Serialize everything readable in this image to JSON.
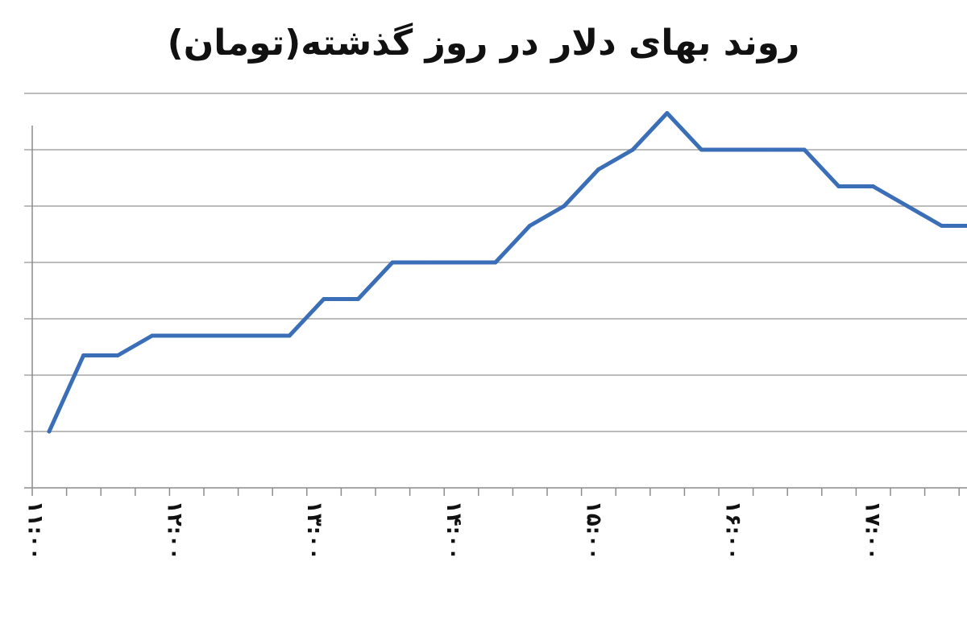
{
  "chart_data": {
    "type": "line",
    "title": "روند بهای دلار در روز گذشته(تومان)",
    "xlabel": "",
    "ylabel": "",
    "grid": true,
    "legend": "none",
    "x_tick_labels": [
      "۱۱:۰۰",
      "۱۲:۰۰",
      "۱۳:۰۰",
      "۱۴:۰۰",
      "۱۵:۰۰",
      "۱۶:۰۰",
      "۱۷:۰۰"
    ],
    "x_tick_indices": [
      0,
      4,
      8,
      12,
      16,
      20,
      24
    ],
    "ylim": [
      0,
      7
    ],
    "series": [
      {
        "color": "#3a6fb7",
        "values": [
          1,
          2.35,
          2.35,
          2.7,
          2.7,
          2.7,
          2.7,
          2.7,
          3.35,
          3.35,
          4,
          4,
          4,
          4,
          4.65,
          5,
          5.65,
          6,
          6.65,
          6,
          6,
          6,
          6,
          5.35,
          5.35,
          5,
          4.65,
          4.65
        ]
      }
    ]
  }
}
